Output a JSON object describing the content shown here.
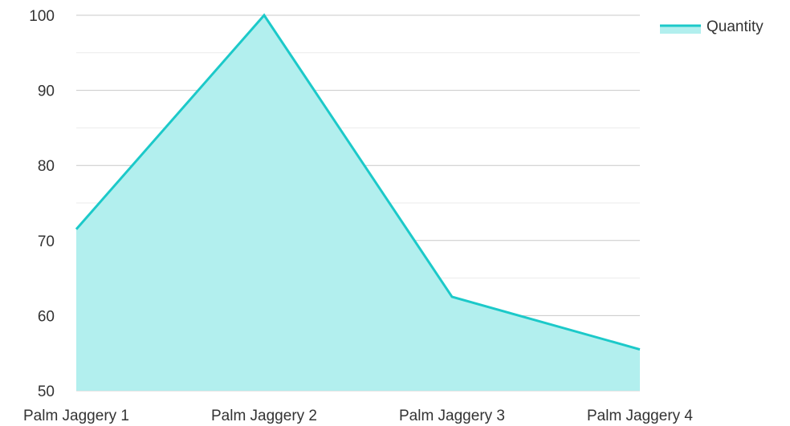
{
  "chart_data": {
    "type": "area",
    "categories": [
      "Palm Jaggery 1",
      "Palm Jaggery 2",
      "Palm Jaggery 3",
      "Palm Jaggery 4"
    ],
    "series": [
      {
        "name": "Quantity",
        "values": [
          71.5,
          100,
          62.5,
          55.5
        ]
      }
    ],
    "ylim": [
      50,
      100
    ],
    "y_ticks": [
      "50",
      "60",
      "70",
      "80",
      "90",
      "100"
    ],
    "y_tick_values": [
      50,
      60,
      70,
      80,
      90,
      100
    ],
    "grid": true,
    "legend_position": "top-right",
    "title": "",
    "xlabel": "",
    "ylabel": ""
  },
  "colors": {
    "line": "#1cc9c9",
    "fill": "#b2efee",
    "grid_major": "#c8c8c8",
    "grid_minor": "#ebebeb",
    "text": "#333333"
  }
}
